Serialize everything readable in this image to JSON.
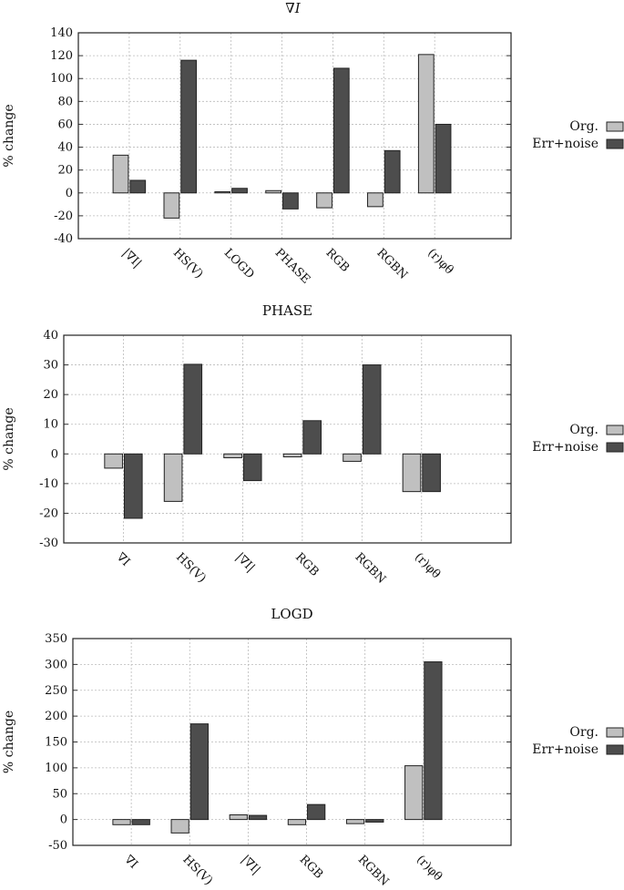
{
  "legend": {
    "labels": [
      "Org.",
      "Err+noise"
    ],
    "colors": [
      "#c0c0c0",
      "#4d4d4d"
    ]
  },
  "chart_data": [
    {
      "type": "bar",
      "title": "∇I",
      "ylabel": "% change",
      "ylim": [
        -40,
        140
      ],
      "yticks": [
        -40,
        -20,
        0,
        20,
        40,
        60,
        80,
        100,
        120,
        140
      ],
      "grid": true,
      "legend_position": "right",
      "categories": [
        "|∇I|",
        "HS(V)",
        "LOGD",
        "PHASE",
        "RGB",
        "RGBN",
        "(r)φθ"
      ],
      "series": [
        {
          "name": "Org.",
          "values": [
            33,
            -22,
            1,
            2,
            -13,
            -12,
            121
          ]
        },
        {
          "name": "Err+noise",
          "values": [
            11,
            116,
            4,
            -14,
            109,
            37,
            60
          ]
        }
      ]
    },
    {
      "type": "bar",
      "title": "PHASE",
      "ylabel": "% change",
      "ylim": [
        -30,
        40
      ],
      "yticks": [
        -30,
        -20,
        -10,
        0,
        10,
        20,
        30,
        40
      ],
      "grid": true,
      "legend_position": "right",
      "categories": [
        "∇I",
        "HS(V)",
        "|∇I|",
        "RGB",
        "RGBN",
        "(r)φθ"
      ],
      "series": [
        {
          "name": "Org.",
          "values": [
            -4.8,
            -16,
            -1.3,
            -1,
            -2.5,
            -12.7
          ]
        },
        {
          "name": "Err+noise",
          "values": [
            -21.7,
            30.2,
            -9,
            11.2,
            30,
            -12.7
          ]
        }
      ]
    },
    {
      "type": "bar",
      "title": "LOGD",
      "ylabel": "% change",
      "ylim": [
        -50,
        350
      ],
      "yticks": [
        -50,
        0,
        50,
        100,
        150,
        200,
        250,
        300,
        350
      ],
      "grid": true,
      "legend_position": "right",
      "categories": [
        "∇I",
        "HS(V)",
        "|∇I|",
        "RGB",
        "RGBN",
        "(r)φθ"
      ],
      "series": [
        {
          "name": "Org.",
          "values": [
            -10,
            -26,
            9,
            -10,
            -8,
            104
          ]
        },
        {
          "name": "Err+noise",
          "values": [
            -10,
            185,
            8,
            29,
            -5,
            305
          ]
        }
      ]
    }
  ]
}
